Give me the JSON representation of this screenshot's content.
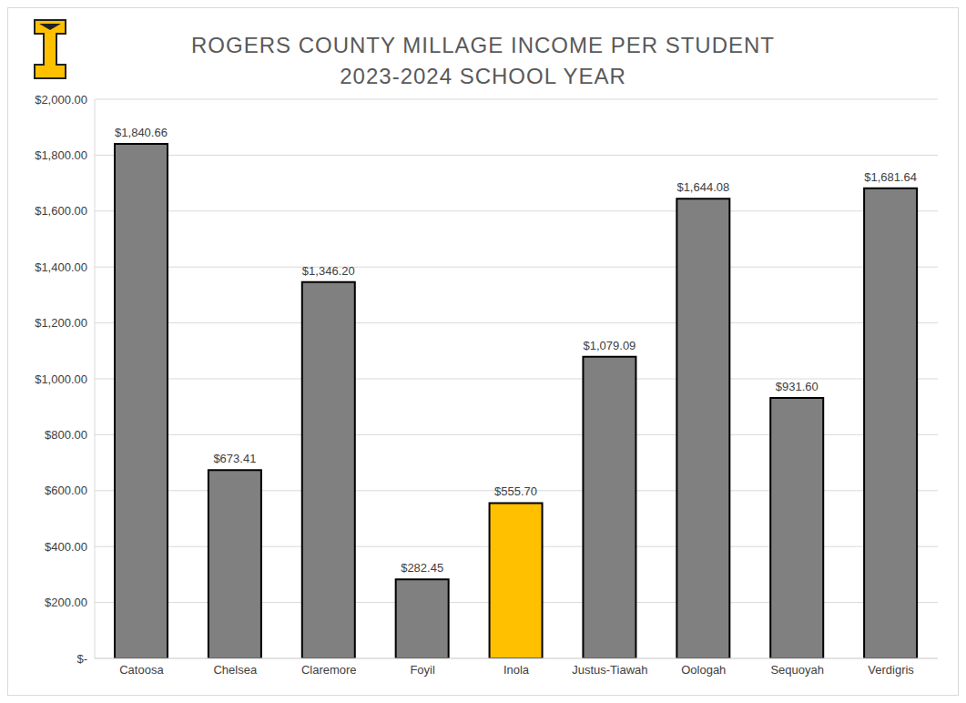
{
  "chart_data": {
    "type": "bar",
    "title": "ROGERS COUNTY MILLAGE INCOME PER STUDENT",
    "subtitle": "2023-2024 SCHOOL YEAR",
    "categories": [
      "Catoosa",
      "Chelsea",
      "Claremore",
      "Foyil",
      "Inola",
      "Justus-Tiawah",
      "Oologah",
      "Sequoyah",
      "Verdigris"
    ],
    "values": [
      1840.66,
      673.41,
      1346.2,
      282.45,
      555.7,
      1079.09,
      1644.08,
      931.6,
      1681.64
    ],
    "value_labels": [
      "$1,840.66",
      "$673.41",
      "$1,346.20",
      "$282.45",
      "$555.70",
      "$1,079.09",
      "$1,644.08",
      "$931.60",
      "$1,681.64"
    ],
    "colors": [
      "#808080",
      "#808080",
      "#808080",
      "#808080",
      "#ffc000",
      "#808080",
      "#808080",
      "#808080",
      "#808080"
    ],
    "ylim": [
      0,
      2000
    ],
    "yticks": [
      {
        "value": 0,
        "label": "$-"
      },
      {
        "value": 200,
        "label": "$200.00"
      },
      {
        "value": 400,
        "label": "$400.00"
      },
      {
        "value": 600,
        "label": "$600.00"
      },
      {
        "value": 800,
        "label": "$800.00"
      },
      {
        "value": 1000,
        "label": "$1,000.00"
      },
      {
        "value": 1200,
        "label": "$1,200.00"
      },
      {
        "value": 1400,
        "label": "$1,400.00"
      },
      {
        "value": 1600,
        "label": "$1,600.00"
      },
      {
        "value": 1800,
        "label": "$1,800.00"
      },
      {
        "value": 2000,
        "label": "$2,000.00"
      }
    ],
    "grid": true,
    "data_labels": true
  }
}
